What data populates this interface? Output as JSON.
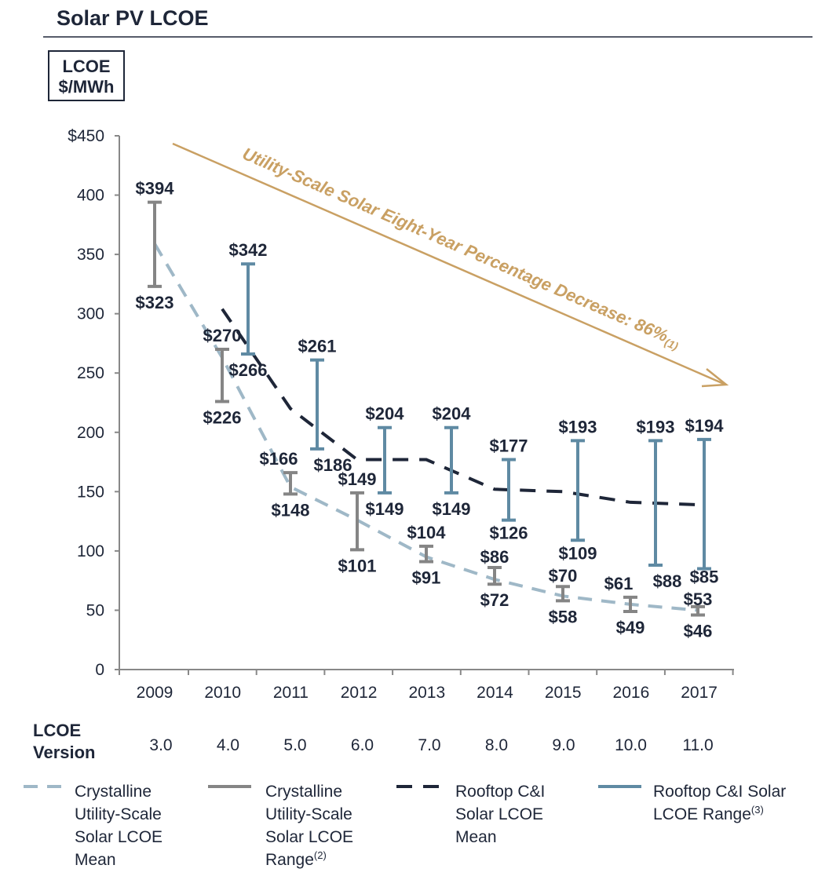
{
  "title": "Solar PV LCOE",
  "unit_box": {
    "line1": "LCOE",
    "line2": "$/MWh"
  },
  "annotation": {
    "text": "Utility-Scale Solar Eight-Year Percentage Decrease: 86%",
    "footnote": "(1)"
  },
  "version_row": {
    "label_line1": "LCOE",
    "label_line2": "Version",
    "values": [
      "3.0",
      "4.0",
      "5.0",
      "6.0",
      "7.0",
      "8.0",
      "9.0",
      "10.0",
      "11.0"
    ]
  },
  "colors": {
    "utility_mean": "#9fb8c7",
    "utility_range": "#858585",
    "rooftop_mean": "#1e2638",
    "rooftop_range": "#5f8aa3",
    "annotation": "#c9a063"
  },
  "chart_data": {
    "type": "line",
    "categories": [
      "2009",
      "2010",
      "2011",
      "2012",
      "2013",
      "2014",
      "2015",
      "2016",
      "2017"
    ],
    "ylim": [
      0,
      450
    ],
    "yticks": [
      "0",
      "50",
      "100",
      "150",
      "200",
      "250",
      "300",
      "350",
      "400",
      "$450"
    ],
    "grid": false,
    "legend_position": "bottom",
    "series": [
      {
        "name": "Crystalline Utility-Scale Solar LCOE Mean",
        "style": "dashed",
        "values": [
          359,
          263,
          154,
          126,
          95,
          76,
          62,
          55,
          50
        ]
      },
      {
        "name": "Crystalline Utility-Scale Solar LCOE Range",
        "footnote": "(2)",
        "style": "range",
        "high": [
          394,
          270,
          166,
          149,
          104,
          86,
          70,
          61,
          53
        ],
        "low": [
          323,
          226,
          148,
          101,
          91,
          72,
          58,
          49,
          46
        ],
        "high_labels": [
          "$394",
          "$270",
          "$166",
          "$149",
          "$104",
          "$86",
          "$70",
          "$61",
          "$53"
        ],
        "low_labels": [
          "$323",
          "$226",
          "$148",
          "$101",
          "$91",
          "$72",
          "$58",
          "$49",
          "$46"
        ]
      },
      {
        "name": "Rooftop C&I Solar LCOE Mean",
        "style": "dashed",
        "values": [
          null,
          304,
          220,
          177,
          177,
          152,
          150,
          141,
          139
        ]
      },
      {
        "name": "Rooftop C&I Solar LCOE Range",
        "footnote": "(3)",
        "style": "range",
        "high": [
          null,
          342,
          261,
          204,
          204,
          177,
          193,
          193,
          194
        ],
        "low": [
          null,
          266,
          186,
          149,
          149,
          126,
          109,
          88,
          85
        ],
        "high_labels": [
          null,
          "$342",
          "$261",
          "$204",
          "$204",
          "$177",
          "$193",
          "$193",
          "$194"
        ],
        "low_labels": [
          null,
          "$266",
          "$186",
          "$149",
          "$149",
          "$126",
          "$109",
          "$88",
          "$85"
        ]
      }
    ]
  },
  "legend": [
    {
      "lines": [
        "Crystalline",
        "Utility-Scale",
        "Solar LCOE",
        "Mean"
      ],
      "footnote": ""
    },
    {
      "lines": [
        "Crystalline",
        "Utility-Scale",
        "Solar LCOE",
        "Range"
      ],
      "footnote": "(2)"
    },
    {
      "lines": [
        "Rooftop C&I",
        "Solar LCOE",
        "Mean"
      ],
      "footnote": ""
    },
    {
      "lines": [
        "Rooftop C&I Solar",
        "LCOE Range"
      ],
      "footnote": "(3)"
    }
  ]
}
